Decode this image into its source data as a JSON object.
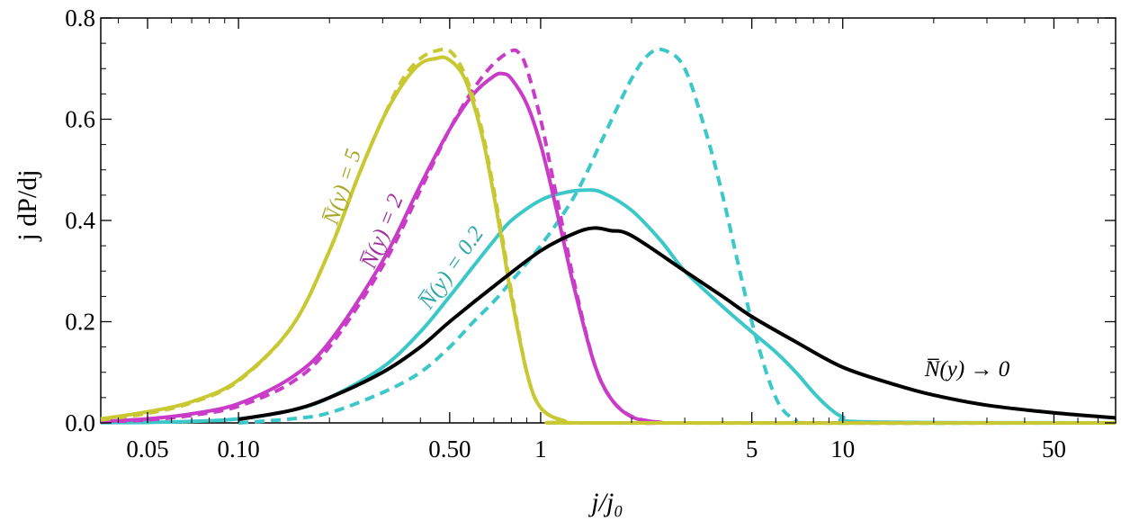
{
  "chart_data": {
    "type": "line",
    "title": "",
    "xlabel": "j/j₀",
    "ylabel": "j dP/dj",
    "x_scale": "log",
    "xlim": [
      0.035,
      80
    ],
    "ylim": [
      0,
      0.8
    ],
    "grid": false,
    "x_ticks": [
      {
        "value": 0.05,
        "label": "0.05"
      },
      {
        "value": 0.1,
        "label": "0.10"
      },
      {
        "value": 0.5,
        "label": "0.50"
      },
      {
        "value": 1,
        "label": "1"
      },
      {
        "value": 5,
        "label": "5"
      },
      {
        "value": 10,
        "label": "10"
      },
      {
        "value": 50,
        "label": "50"
      }
    ],
    "y_ticks": [
      {
        "value": 0.0,
        "label": "0.0"
      },
      {
        "value": 0.2,
        "label": "0.2"
      },
      {
        "value": 0.4,
        "label": "0.4"
      },
      {
        "value": 0.6,
        "label": "0.6"
      },
      {
        "value": 0.8,
        "label": "0.8"
      }
    ],
    "series": [
      {
        "name": "N̅(y) = 5",
        "color": "#c8c832",
        "style": "solid",
        "x": [
          0.035,
          0.05,
          0.07,
          0.1,
          0.15,
          0.2,
          0.25,
          0.3,
          0.35,
          0.4,
          0.45,
          0.49,
          0.55,
          0.6,
          0.65,
          0.7,
          0.75,
          0.8,
          0.9,
          1.0,
          1.2,
          1.5,
          80
        ],
        "y": [
          0.008,
          0.022,
          0.042,
          0.085,
          0.19,
          0.34,
          0.49,
          0.6,
          0.67,
          0.71,
          0.72,
          0.72,
          0.69,
          0.63,
          0.55,
          0.45,
          0.35,
          0.25,
          0.1,
          0.03,
          0.004,
          0.0,
          0.0
        ]
      },
      {
        "name": "N̅(y) = 5 (dashed)",
        "color": "#c8c832",
        "style": "dashed",
        "x": [
          0.035,
          0.05,
          0.07,
          0.1,
          0.15,
          0.2,
          0.25,
          0.3,
          0.35,
          0.4,
          0.45,
          0.5,
          0.55,
          0.6,
          0.65,
          0.7,
          0.75,
          0.8,
          0.9,
          1.0,
          1.2,
          1.5,
          80
        ],
        "y": [
          0.006,
          0.019,
          0.04,
          0.083,
          0.19,
          0.34,
          0.49,
          0.6,
          0.68,
          0.72,
          0.735,
          0.735,
          0.7,
          0.64,
          0.56,
          0.46,
          0.36,
          0.26,
          0.1,
          0.03,
          0.004,
          0.0,
          0.0
        ]
      },
      {
        "name": "N̅(y) = 2",
        "color": "#c83cc8",
        "style": "solid",
        "x": [
          0.035,
          0.05,
          0.07,
          0.1,
          0.15,
          0.2,
          0.3,
          0.4,
          0.5,
          0.6,
          0.7,
          0.75,
          0.8,
          0.9,
          1.0,
          1.1,
          1.2,
          1.3,
          1.5,
          1.7,
          2.0,
          2.5,
          3.0,
          80
        ],
        "y": [
          0.003,
          0.008,
          0.018,
          0.038,
          0.09,
          0.16,
          0.32,
          0.47,
          0.58,
          0.65,
          0.685,
          0.69,
          0.68,
          0.63,
          0.55,
          0.45,
          0.35,
          0.26,
          0.12,
          0.05,
          0.012,
          0.001,
          0.0,
          0.0
        ]
      },
      {
        "name": "N̅(y) = 2 (dashed)",
        "color": "#c83cc8",
        "style": "dashed",
        "x": [
          0.035,
          0.05,
          0.07,
          0.1,
          0.15,
          0.2,
          0.3,
          0.4,
          0.5,
          0.6,
          0.7,
          0.8,
          0.85,
          0.9,
          1.0,
          1.1,
          1.2,
          1.3,
          1.5,
          1.7,
          2.0,
          2.5,
          3.0,
          80
        ],
        "y": [
          0.002,
          0.006,
          0.015,
          0.033,
          0.08,
          0.15,
          0.31,
          0.46,
          0.58,
          0.66,
          0.71,
          0.735,
          0.73,
          0.7,
          0.6,
          0.48,
          0.37,
          0.27,
          0.12,
          0.05,
          0.013,
          0.001,
          0.0,
          0.0
        ]
      },
      {
        "name": "N̅(y) = 0.2",
        "color": "#3cc8c8",
        "style": "solid",
        "x": [
          0.035,
          0.05,
          0.07,
          0.1,
          0.15,
          0.2,
          0.3,
          0.4,
          0.5,
          0.6,
          0.7,
          0.8,
          1.0,
          1.2,
          1.4,
          1.6,
          2.0,
          2.5,
          3.0,
          4.0,
          5.0,
          6.0,
          7.0,
          8.0,
          9.0,
          10.0,
          12.0,
          80
        ],
        "y": [
          0.0005,
          0.001,
          0.003,
          0.008,
          0.025,
          0.05,
          0.11,
          0.18,
          0.25,
          0.31,
          0.36,
          0.4,
          0.44,
          0.455,
          0.46,
          0.455,
          0.42,
          0.36,
          0.3,
          0.23,
          0.18,
          0.14,
          0.1,
          0.06,
          0.03,
          0.012,
          0.002,
          0.0
        ]
      },
      {
        "name": "N̅(y) = 0.2 (dashed)",
        "color": "#3cc8c8",
        "style": "dashed",
        "x": [
          0.1,
          0.15,
          0.2,
          0.3,
          0.4,
          0.5,
          0.6,
          0.7,
          0.8,
          1.0,
          1.3,
          1.6,
          2.0,
          2.3,
          2.6,
          3.0,
          3.5,
          4.0,
          5.0,
          6.0,
          7.0,
          8.0,
          80
        ],
        "y": [
          0.0,
          0.008,
          0.02,
          0.06,
          0.1,
          0.15,
          0.2,
          0.24,
          0.28,
          0.35,
          0.45,
          0.56,
          0.68,
          0.73,
          0.735,
          0.7,
          0.58,
          0.45,
          0.2,
          0.05,
          0.005,
          0.0,
          0.0
        ]
      },
      {
        "name": "N̅(y) → 0",
        "color": "#000000",
        "style": "solid",
        "x": [
          0.1,
          0.15,
          0.2,
          0.3,
          0.4,
          0.5,
          0.7,
          1.0,
          1.3,
          1.5,
          1.7,
          2.0,
          3.0,
          4.0,
          5.0,
          7.0,
          10.0,
          15.0,
          20.0,
          30.0,
          50.0,
          80.0
        ],
        "y": [
          0.007,
          0.025,
          0.05,
          0.1,
          0.15,
          0.2,
          0.27,
          0.34,
          0.375,
          0.385,
          0.38,
          0.37,
          0.3,
          0.25,
          0.21,
          0.16,
          0.11,
          0.075,
          0.055,
          0.035,
          0.02,
          0.01
        ]
      }
    ],
    "annotations": [
      {
        "series": 0,
        "text": "N̅(y) = 5",
        "color": "#a8a828"
      },
      {
        "series": 2,
        "text": "N̅(y) = 2",
        "color": "#a030a0"
      },
      {
        "series": 4,
        "text": "N̅(y) = 0.2",
        "color": "#2ea8a8"
      },
      {
        "series": 6,
        "text": "N̅(y) → 0",
        "color": "#000000"
      }
    ]
  }
}
